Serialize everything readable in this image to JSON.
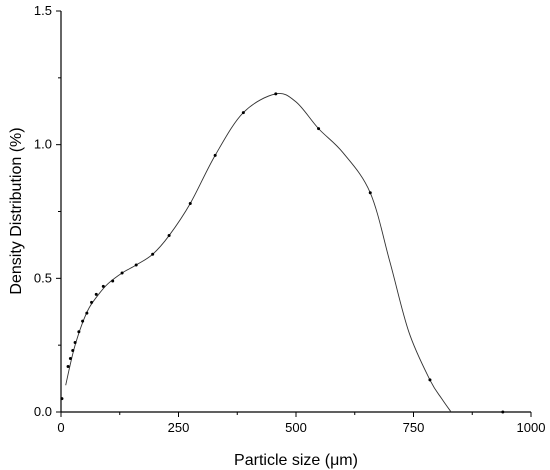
{
  "chart_data": {
    "type": "line",
    "xlabel": "Particle size (μm)",
    "ylabel": "Density Distribution (%)",
    "xlim": [
      0,
      1000
    ],
    "ylim": [
      0,
      1.5
    ],
    "x_ticks": [
      0,
      250,
      500,
      750,
      1000
    ],
    "y_ticks": [
      0.0,
      0.5,
      1.0,
      1.5
    ],
    "x_tick_labels": [
      "0",
      "250",
      "500",
      "750",
      "1000"
    ],
    "y_tick_labels": [
      "0.0",
      "0.5",
      "1.0",
      "1.5"
    ],
    "grid": false,
    "series": [
      {
        "x": [
          2,
          15,
          20,
          25,
          30,
          38,
          46,
          55,
          65,
          75,
          90,
          110,
          130,
          160,
          195,
          230,
          275,
          328,
          388,
          457,
          548,
          658,
          785,
          940
        ],
        "y": [
          0.05,
          0.17,
          0.2,
          0.23,
          0.26,
          0.3,
          0.34,
          0.37,
          0.41,
          0.44,
          0.47,
          0.49,
          0.52,
          0.55,
          0.59,
          0.66,
          0.78,
          0.96,
          1.12,
          1.19,
          1.06,
          0.82,
          0.12,
          0.0
        ]
      }
    ],
    "curve": {
      "x": [
        10,
        20,
        30,
        45,
        60,
        80,
        100,
        130,
        160,
        195,
        230,
        275,
        328,
        388,
        457,
        500,
        548,
        600,
        658,
        700,
        740,
        785,
        810,
        830
      ],
      "y": [
        0.1,
        0.18,
        0.25,
        0.33,
        0.39,
        0.44,
        0.48,
        0.52,
        0.55,
        0.59,
        0.66,
        0.78,
        0.96,
        1.12,
        1.19,
        1.16,
        1.06,
        0.97,
        0.82,
        0.56,
        0.3,
        0.12,
        0.05,
        0.0
      ]
    }
  }
}
